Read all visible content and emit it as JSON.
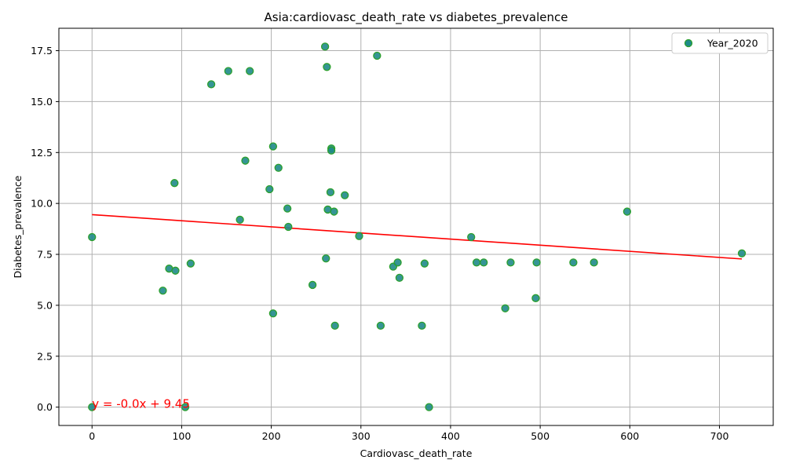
{
  "chart_data": {
    "type": "scatter",
    "title": "Asia:cardiovasc_death_rate vs diabetes_prevalence",
    "xlabel": "Cardiovasc_death_rate",
    "ylabel": "Diabetes_prevalence",
    "xlim": [
      -37,
      760
    ],
    "ylim": [
      -0.9,
      18.6
    ],
    "xticks": [
      0,
      100,
      200,
      300,
      400,
      500,
      600,
      700
    ],
    "yticks": [
      0.0,
      2.5,
      5.0,
      7.5,
      10.0,
      12.5,
      15.0,
      17.5
    ],
    "xtick_labels": [
      "0",
      "100",
      "200",
      "300",
      "400",
      "500",
      "600",
      "700"
    ],
    "ytick_labels": [
      "0.0",
      "2.5",
      "5.0",
      "7.5",
      "10.0",
      "12.5",
      "15.0",
      "17.5"
    ],
    "grid": true,
    "legend_position": "top-right",
    "series": [
      {
        "name": "Year_2020",
        "color": "#1f8a8a",
        "edge_color": "#2ca02c",
        "points": [
          [
            0,
            8.35
          ],
          [
            0,
            0.0
          ],
          [
            79,
            5.72
          ],
          [
            86,
            6.8
          ],
          [
            92,
            11.0
          ],
          [
            93,
            6.7
          ],
          [
            104,
            0.0
          ],
          [
            110,
            7.05
          ],
          [
            133,
            15.85
          ],
          [
            152,
            16.5
          ],
          [
            165,
            9.2
          ],
          [
            171,
            12.1
          ],
          [
            176,
            16.5
          ],
          [
            198,
            10.7
          ],
          [
            202,
            12.8
          ],
          [
            202,
            4.6
          ],
          [
            208,
            11.75
          ],
          [
            218,
            9.75
          ],
          [
            219,
            8.85
          ],
          [
            246,
            6.0
          ],
          [
            260,
            17.7
          ],
          [
            261,
            7.3
          ],
          [
            262,
            16.7
          ],
          [
            263,
            9.7
          ],
          [
            266,
            10.55
          ],
          [
            267,
            12.7
          ],
          [
            267,
            12.6
          ],
          [
            270,
            9.6
          ],
          [
            271,
            4.0
          ],
          [
            282,
            10.4
          ],
          [
            298,
            8.4
          ],
          [
            318,
            17.25
          ],
          [
            322,
            4.0
          ],
          [
            336,
            6.9
          ],
          [
            341,
            7.1
          ],
          [
            343,
            6.35
          ],
          [
            368,
            4.0
          ],
          [
            371,
            7.05
          ],
          [
            376,
            0.0
          ],
          [
            423,
            8.35
          ],
          [
            429,
            7.1
          ],
          [
            437,
            7.1
          ],
          [
            461,
            4.85
          ],
          [
            467,
            7.1
          ],
          [
            495,
            5.35
          ],
          [
            496,
            7.1
          ],
          [
            537,
            7.1
          ],
          [
            560,
            7.1
          ],
          [
            597,
            9.6
          ],
          [
            725,
            7.55
          ]
        ]
      }
    ],
    "regression": {
      "label": "y = -0.0x + 9.45",
      "color": "#ff0000",
      "slope": -0.003,
      "intercept": 9.45,
      "x_range": [
        0,
        725
      ]
    }
  }
}
